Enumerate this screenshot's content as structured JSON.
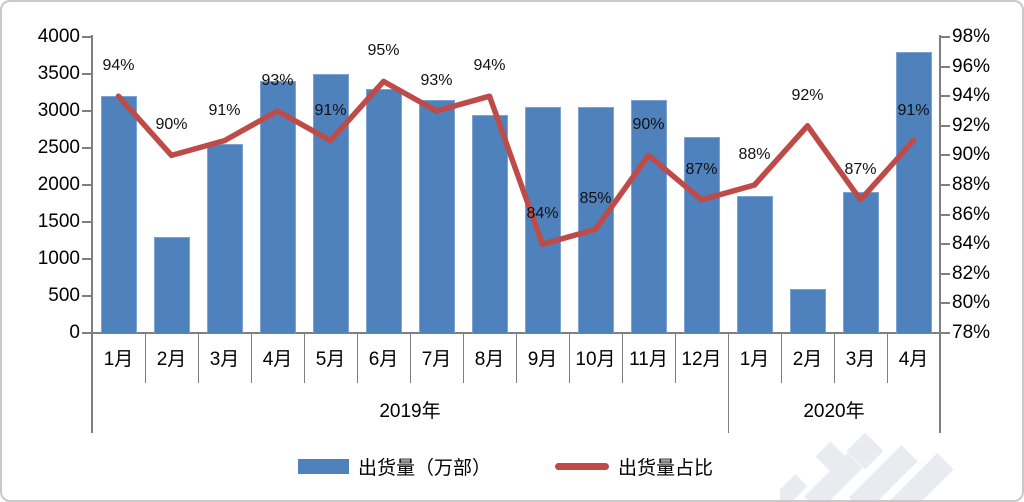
{
  "chart_data": {
    "type": "bar+line",
    "categories": [
      "1月",
      "2月",
      "3月",
      "4月",
      "5月",
      "6月",
      "7月",
      "8月",
      "9月",
      "10月",
      "11月",
      "12月",
      "1月",
      "2月",
      "3月",
      "4月"
    ],
    "category_groups": [
      {
        "label": "2019年",
        "span": 12
      },
      {
        "label": "2020年",
        "span": 4
      }
    ],
    "series": [
      {
        "name": "出货量（万部）",
        "type": "bar",
        "axis": "left",
        "color": "#4f81bd",
        "values": [
          3200,
          1300,
          2550,
          3400,
          3500,
          3300,
          3150,
          2950,
          3050,
          3050,
          3150,
          2650,
          1850,
          590,
          1900,
          3800
        ]
      },
      {
        "name": "出货量占比",
        "type": "line",
        "axis": "right",
        "color": "#be4b48",
        "values_percent": [
          94,
          90,
          91,
          93,
          91,
          95,
          93,
          94,
          84,
          85,
          90,
          87,
          88,
          92,
          87,
          91
        ],
        "point_labels": [
          "94%",
          "90%",
          "91%",
          "93%",
          "91%",
          "95%",
          "93%",
          "94%",
          "84%",
          "85%",
          "90%",
          "87%",
          "88%",
          "92%",
          "87%",
          "91%"
        ]
      }
    ],
    "left_axis": {
      "min": 0,
      "max": 4000,
      "step": 500,
      "tick_labels": [
        "4000",
        "3500",
        "3000",
        "2500",
        "2000",
        "1500",
        "1000",
        "500",
        "0"
      ]
    },
    "right_axis": {
      "min": 78,
      "max": 98,
      "step": 2,
      "unit": "%",
      "tick_labels": [
        "98%",
        "96%",
        "94%",
        "92%",
        "90%",
        "88%",
        "86%",
        "84%",
        "82%",
        "80%",
        "78%"
      ]
    },
    "grid": "off",
    "legend_position": "bottom"
  },
  "legend": {
    "items": [
      {
        "label": "出货量（万部）",
        "swatch": "bar",
        "color": "#4f81bd"
      },
      {
        "label": "出货量占比",
        "swatch": "line",
        "color": "#be4b48"
      }
    ]
  }
}
